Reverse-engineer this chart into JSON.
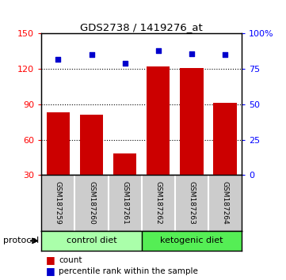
{
  "title": "GDS2738 / 1419276_at",
  "samples": [
    "GSM187259",
    "GSM187260",
    "GSM187261",
    "GSM187262",
    "GSM187263",
    "GSM187264"
  ],
  "bar_values": [
    83,
    81,
    48,
    122,
    121,
    91
  ],
  "percentile_values": [
    82,
    85,
    79,
    88,
    86,
    85
  ],
  "bar_color": "#cc0000",
  "dot_color": "#0000cc",
  "ylim_left": [
    30,
    150
  ],
  "ylim_right": [
    0,
    100
  ],
  "yticks_left": [
    30,
    60,
    90,
    120,
    150
  ],
  "yticks_right": [
    0,
    25,
    50,
    75,
    100
  ],
  "ytick_labels_right": [
    "0",
    "25",
    "50",
    "75",
    "100%"
  ],
  "grid_values": [
    60,
    90,
    120
  ],
  "group1_label": "control diet",
  "group2_label": "ketogenic diet",
  "group1_color": "#aaffaa",
  "group2_color": "#55ee55",
  "protocol_label": "protocol",
  "legend_count": "count",
  "legend_percentile": "percentile rank within the sample",
  "bg_color": "#ffffff",
  "plot_bg_color": "#ffffff",
  "tick_area_color": "#cccccc"
}
